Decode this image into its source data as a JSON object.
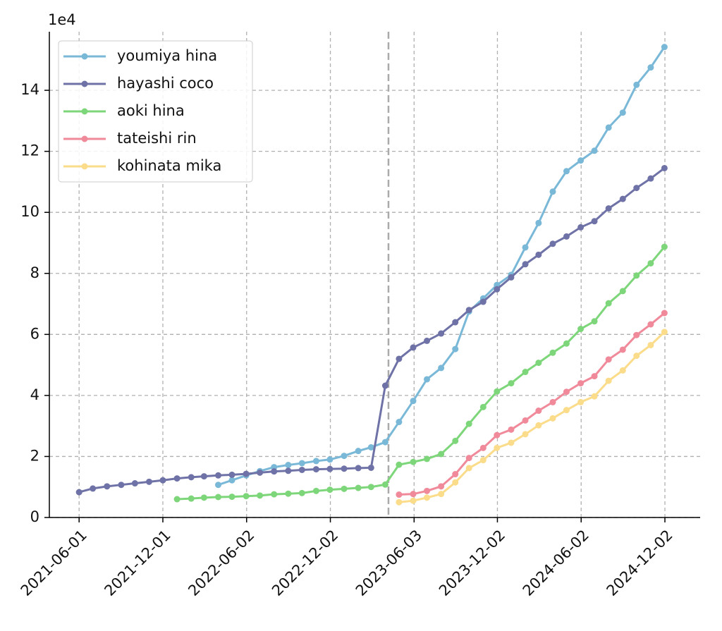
{
  "chart_data": {
    "type": "line",
    "y_offset_label": "1e4",
    "x": [
      "2021-06-01",
      "2021-07-01",
      "2021-08-01",
      "2021-09-01",
      "2021-10-01",
      "2021-11-01",
      "2021-12-01",
      "2022-01-01",
      "2022-02-01",
      "2022-03-01",
      "2022-04-01",
      "2022-05-01",
      "2022-06-01",
      "2022-07-01",
      "2022-08-01",
      "2022-09-01",
      "2022-10-01",
      "2022-11-01",
      "2022-12-01",
      "2023-01-01",
      "2023-02-01",
      "2023-03-01",
      "2023-04-01",
      "2023-05-01",
      "2023-06-01",
      "2023-07-01",
      "2023-08-01",
      "2023-09-01",
      "2023-10-01",
      "2023-11-01",
      "2023-12-01",
      "2024-01-01",
      "2024-02-01",
      "2024-03-01",
      "2024-04-01",
      "2024-05-01",
      "2024-06-01",
      "2024-07-01",
      "2024-08-01",
      "2024-09-01",
      "2024-10-01",
      "2024-11-01",
      "2024-12-01"
    ],
    "series": [
      {
        "name": "youmiya hina",
        "color": "#7ab8d8",
        "values": [
          null,
          null,
          null,
          null,
          null,
          null,
          null,
          null,
          null,
          null,
          1.07,
          1.22,
          1.38,
          1.52,
          1.65,
          1.72,
          1.78,
          1.85,
          1.9,
          2.02,
          2.18,
          2.3,
          2.47,
          3.13,
          3.82,
          4.53,
          4.9,
          5.52,
          6.75,
          7.18,
          7.62,
          7.95,
          8.85,
          9.65,
          10.68,
          11.35,
          11.7,
          12.02,
          12.78,
          13.27,
          14.18,
          14.75,
          15.42
        ]
      },
      {
        "name": "hayashi coco",
        "color": "#6f72a6",
        "values": [
          0.83,
          0.95,
          1.02,
          1.07,
          1.12,
          1.17,
          1.22,
          1.28,
          1.32,
          1.35,
          1.38,
          1.4,
          1.43,
          1.47,
          1.51,
          1.53,
          1.56,
          1.58,
          1.59,
          1.6,
          1.62,
          1.63,
          4.32,
          5.2,
          5.57,
          5.79,
          6.03,
          6.4,
          6.8,
          7.07,
          7.48,
          7.87,
          8.3,
          8.61,
          8.97,
          9.21,
          9.51,
          9.71,
          10.13,
          10.44,
          10.8,
          11.11,
          11.45
        ]
      },
      {
        "name": "aoki hina",
        "color": "#7ed67a",
        "values": [
          null,
          null,
          null,
          null,
          null,
          null,
          null,
          0.6,
          0.62,
          0.65,
          0.67,
          0.68,
          0.7,
          0.72,
          0.76,
          0.78,
          0.8,
          0.87,
          0.91,
          0.94,
          0.97,
          1.0,
          1.08,
          1.73,
          1.82,
          1.92,
          2.08,
          2.51,
          3.07,
          3.62,
          4.13,
          4.4,
          4.77,
          5.07,
          5.4,
          5.7,
          6.18,
          6.43,
          7.02,
          7.42,
          7.93,
          8.33,
          8.87
        ]
      },
      {
        "name": "tateishi rin",
        "color": "#f08a9a",
        "values": [
          null,
          null,
          null,
          null,
          null,
          null,
          null,
          null,
          null,
          null,
          null,
          null,
          null,
          null,
          null,
          null,
          null,
          null,
          null,
          null,
          null,
          null,
          null,
          0.75,
          0.77,
          0.87,
          1.02,
          1.42,
          1.95,
          2.28,
          2.7,
          2.88,
          3.18,
          3.5,
          3.78,
          4.12,
          4.4,
          4.63,
          5.18,
          5.5,
          5.98,
          6.33,
          6.7
        ]
      },
      {
        "name": "kohinata mika",
        "color": "#fadc8a",
        "values": [
          null,
          null,
          null,
          null,
          null,
          null,
          null,
          null,
          null,
          null,
          null,
          null,
          null,
          null,
          null,
          null,
          null,
          null,
          null,
          null,
          null,
          null,
          null,
          0.5,
          0.55,
          0.65,
          0.77,
          1.15,
          1.62,
          1.88,
          2.28,
          2.45,
          2.73,
          3.02,
          3.25,
          3.52,
          3.78,
          3.97,
          4.48,
          4.82,
          5.3,
          5.65,
          6.08
        ]
      }
    ],
    "xlim": [
      "2021-03-28",
      "2025-02-17"
    ],
    "xticks": [
      "2021-06-01",
      "2021-12-01",
      "2022-06-02",
      "2022-12-02",
      "2023-06-03",
      "2023-12-02",
      "2024-06-02",
      "2024-12-02"
    ],
    "ylim": [
      0,
      15.92
    ],
    "yticks": [
      0,
      2,
      4,
      6,
      8,
      10,
      12,
      14
    ],
    "vline": "2023-04-08",
    "grid": true,
    "legend": "upper left"
  }
}
